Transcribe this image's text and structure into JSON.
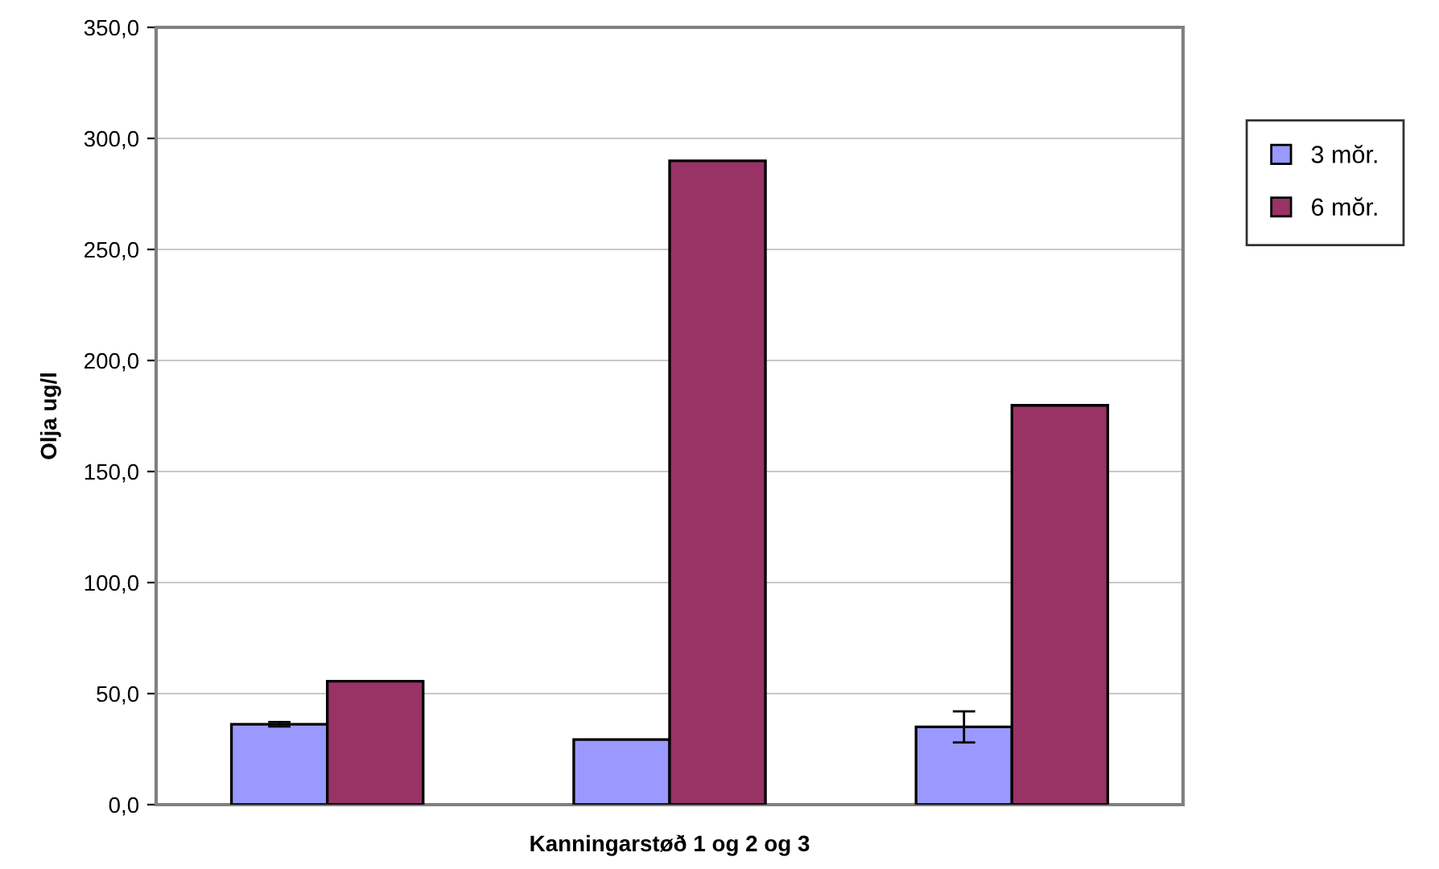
{
  "chart_data": {
    "type": "bar",
    "xlabel": "Kanningarstøð 1 og 2 og 3",
    "ylabel": "Olja ug/l",
    "categories": [
      null,
      null,
      null
    ],
    "series": [
      {
        "name": "3 mŏr.",
        "color": "#9999ff",
        "values": [
          36.2,
          29.3,
          35.0
        ],
        "errors": [
          1,
          null,
          7
        ]
      },
      {
        "name": "6 mŏr.",
        "color": "#993366",
        "values": [
          55.6,
          289.9,
          179.8
        ]
      }
    ],
    "ylim": [
      0,
      350
    ],
    "yticks": [
      {
        "value": 0,
        "label": "0,0"
      },
      {
        "value": 50,
        "label": "50,0"
      },
      {
        "value": 100,
        "label": "100,0"
      },
      {
        "value": 150,
        "label": "150,0"
      },
      {
        "value": 200,
        "label": "200,0"
      },
      {
        "value": 250,
        "label": "250,0"
      },
      {
        "value": 300,
        "label": "300,0"
      },
      {
        "value": 350,
        "label": "350,0"
      }
    ],
    "grid": "y",
    "legend": "right"
  }
}
